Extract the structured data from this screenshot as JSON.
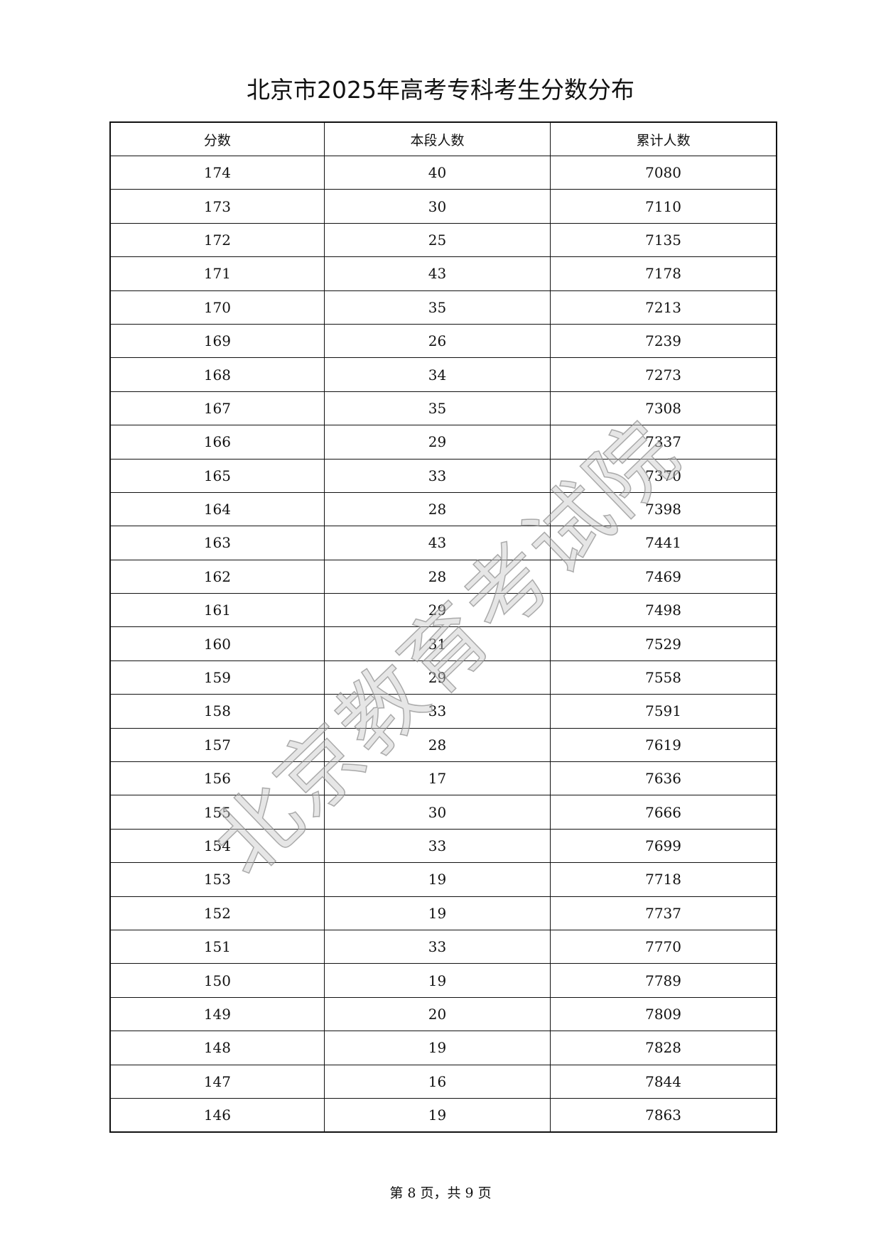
{
  "title": "北京市2025年高考专科考生分数分布",
  "table": {
    "headers": [
      "分数",
      "本段人数",
      "累计人数"
    ],
    "rows": [
      [
        "174",
        "40",
        "7080"
      ],
      [
        "173",
        "30",
        "7110"
      ],
      [
        "172",
        "25",
        "7135"
      ],
      [
        "171",
        "43",
        "7178"
      ],
      [
        "170",
        "35",
        "7213"
      ],
      [
        "169",
        "26",
        "7239"
      ],
      [
        "168",
        "34",
        "7273"
      ],
      [
        "167",
        "35",
        "7308"
      ],
      [
        "166",
        "29",
        "7337"
      ],
      [
        "165",
        "33",
        "7370"
      ],
      [
        "164",
        "28",
        "7398"
      ],
      [
        "163",
        "43",
        "7441"
      ],
      [
        "162",
        "28",
        "7469"
      ],
      [
        "161",
        "29",
        "7498"
      ],
      [
        "160",
        "31",
        "7529"
      ],
      [
        "159",
        "29",
        "7558"
      ],
      [
        "158",
        "33",
        "7591"
      ],
      [
        "157",
        "28",
        "7619"
      ],
      [
        "156",
        "17",
        "7636"
      ],
      [
        "155",
        "30",
        "7666"
      ],
      [
        "154",
        "33",
        "7699"
      ],
      [
        "153",
        "19",
        "7718"
      ],
      [
        "152",
        "19",
        "7737"
      ],
      [
        "151",
        "33",
        "7770"
      ],
      [
        "150",
        "19",
        "7789"
      ],
      [
        "149",
        "20",
        "7809"
      ],
      [
        "148",
        "19",
        "7828"
      ],
      [
        "147",
        "16",
        "7844"
      ],
      [
        "146",
        "19",
        "7863"
      ]
    ]
  },
  "watermark": "北京教育考试院",
  "footer": "第 8 页，共 9 页"
}
